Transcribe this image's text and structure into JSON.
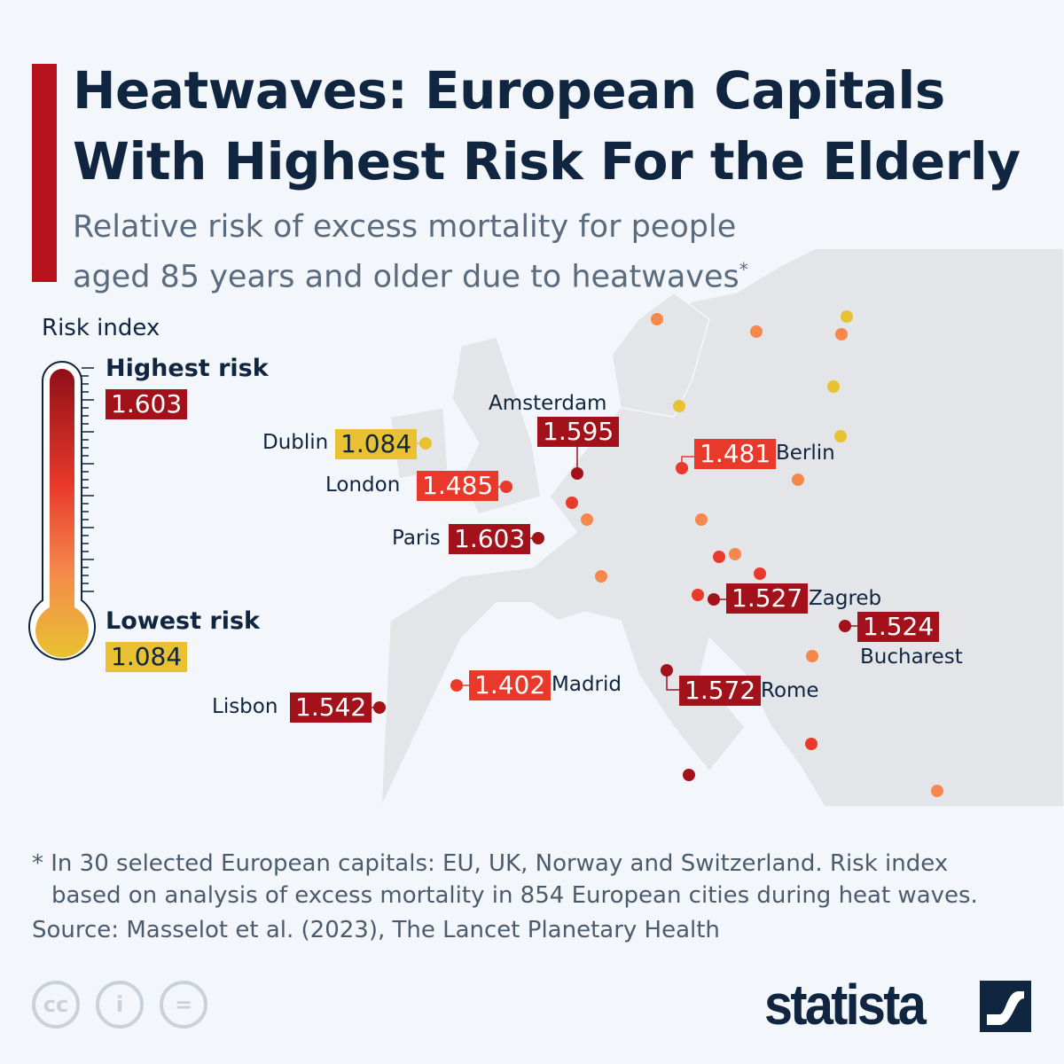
{
  "title": "Heatwaves: European Capitals With Highest Risk For the Elderly",
  "subtitle_line1": "Relative risk of excess mortality for people",
  "subtitle_line2": "aged 85 years and older due to heatwaves",
  "subtitle_mark": "*",
  "legend": {
    "title": "Risk index",
    "highest_label": "Highest risk",
    "highest_value": "1.603",
    "lowest_label": "Lowest risk",
    "lowest_value": "1.084"
  },
  "colors": {
    "very_high": "#a3121b",
    "high": "#e8392b",
    "medium": "#f5884a",
    "low": "#e8c232",
    "land": "#e3e5e8",
    "text": "#0f2540"
  },
  "cities": [
    {
      "name": "Dublin",
      "value": "1.084",
      "level": "low"
    },
    {
      "name": "London",
      "value": "1.485",
      "level": "high"
    },
    {
      "name": "Paris",
      "value": "1.603",
      "level": "very_high"
    },
    {
      "name": "Amsterdam",
      "value": "1.595",
      "level": "very_high"
    },
    {
      "name": "Berlin",
      "value": "1.481",
      "level": "high"
    },
    {
      "name": "Zagreb",
      "value": "1.527",
      "level": "very_high"
    },
    {
      "name": "Bucharest",
      "value": "1.524",
      "level": "very_high"
    },
    {
      "name": "Rome",
      "value": "1.572",
      "level": "very_high"
    },
    {
      "name": "Madrid",
      "value": "1.402",
      "level": "high"
    },
    {
      "name": "Lisbon",
      "value": "1.542",
      "level": "very_high"
    }
  ],
  "footnote_line1": "* In 30 selected European capitals: EU, UK, Norway and Switzerland. Risk index",
  "footnote_line2": "based on analysis of excess mortality in 854 European cities during heat waves.",
  "source": "Source: Masselot et al. (2023), The Lancet Planetary Health",
  "brand": "statista"
}
